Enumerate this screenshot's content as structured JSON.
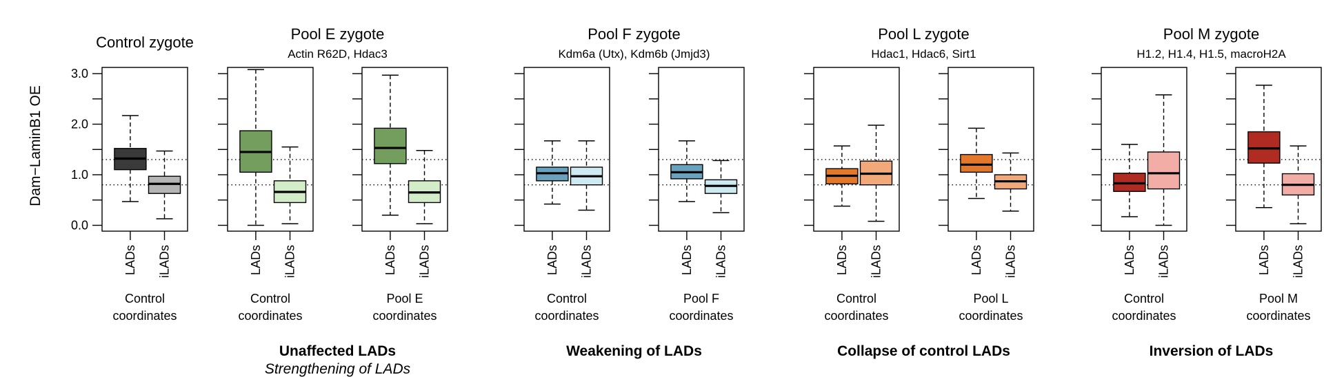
{
  "chart_data": {
    "type": "boxplot",
    "ylabel": "Dam−LaminB1 OE",
    "ylim": [
      0,
      3.2
    ],
    "yticks": [
      0,
      0.5,
      1,
      1.5,
      2,
      2.5,
      3
    ],
    "ytick_labels": [
      "0.0",
      "",
      "1.0",
      "",
      "2.0",
      "",
      "3.0"
    ],
    "reference_lines": [
      0.8,
      1.3
    ],
    "categories": [
      "LADs",
      "iLADs"
    ],
    "groups": [
      {
        "title": "Control zygote",
        "subtitle": "",
        "summary": "",
        "summary2": "",
        "panels": [
          {
            "caption": [
              "Control",
              "coordinates"
            ],
            "boxes": [
              {
                "category": "LADs",
                "color": "#3a3a3a",
                "whisker_low": 0.47,
                "q1": 1.1,
                "median": 1.32,
                "q3": 1.52,
                "whisker_high": 2.17
              },
              {
                "category": "iLADs",
                "color": "#b5b5b5",
                "whisker_low": 0.13,
                "q1": 0.63,
                "median": 0.82,
                "q3": 0.97,
                "whisker_high": 1.47
              }
            ]
          }
        ]
      },
      {
        "title": "Pool E zygote",
        "subtitle": "Actin R62D, Hdac3",
        "summary": "Unaffected LADs",
        "summary2": "Strengthening of LADs",
        "panels": [
          {
            "caption": [
              "Control",
              "coordinates"
            ],
            "boxes": [
              {
                "category": "LADs",
                "color": "#739e5e",
                "whisker_low": 0.0,
                "q1": 1.05,
                "median": 1.45,
                "q3": 1.87,
                "whisker_high": 3.08
              },
              {
                "category": "iLADs",
                "color": "#d3edc8",
                "whisker_low": 0.03,
                "q1": 0.45,
                "median": 0.66,
                "q3": 0.88,
                "whisker_high": 1.55
              }
            ]
          },
          {
            "caption": [
              "Pool E",
              "coordinates"
            ],
            "boxes": [
              {
                "category": "LADs",
                "color": "#739e5e",
                "whisker_low": 0.2,
                "q1": 1.22,
                "median": 1.53,
                "q3": 1.92,
                "whisker_high": 2.97
              },
              {
                "category": "iLADs",
                "color": "#d3edc8",
                "whisker_low": 0.03,
                "q1": 0.45,
                "median": 0.65,
                "q3": 0.88,
                "whisker_high": 1.48
              }
            ]
          }
        ]
      },
      {
        "title": "Pool F zygote",
        "subtitle": "Kdm6a (Utx), Kdm6b (Jmjd3)",
        "summary": "Weakening of LADs",
        "summary2": "",
        "panels": [
          {
            "caption": [
              "Control",
              "coordinates"
            ],
            "boxes": [
              {
                "category": "LADs",
                "color": "#6aa2bd",
                "whisker_low": 0.42,
                "q1": 0.88,
                "median": 1.03,
                "q3": 1.15,
                "whisker_high": 1.67
              },
              {
                "category": "iLADs",
                "color": "#cfe9f1",
                "whisker_low": 0.3,
                "q1": 0.8,
                "median": 0.97,
                "q3": 1.15,
                "whisker_high": 1.67
              }
            ]
          },
          {
            "caption": [
              "Pool F",
              "coordinates"
            ],
            "boxes": [
              {
                "category": "LADs",
                "color": "#6aa2bd",
                "whisker_low": 0.47,
                "q1": 0.92,
                "median": 1.05,
                "q3": 1.2,
                "whisker_high": 1.67
              },
              {
                "category": "iLADs",
                "color": "#cfe9f1",
                "whisker_low": 0.25,
                "q1": 0.63,
                "median": 0.78,
                "q3": 0.9,
                "whisker_high": 1.28
              }
            ]
          }
        ]
      },
      {
        "title": "Pool L zygote",
        "subtitle": "Hdac1, Hdac6, Sirt1",
        "summary": "Collapse of control LADs",
        "summary2": "",
        "panels": [
          {
            "caption": [
              "Control",
              "coordinates"
            ],
            "boxes": [
              {
                "category": "LADs",
                "color": "#e3782b",
                "whisker_low": 0.38,
                "q1": 0.82,
                "median": 0.98,
                "q3": 1.12,
                "whisker_high": 1.57
              },
              {
                "category": "iLADs",
                "color": "#f2a97a",
                "whisker_low": 0.08,
                "q1": 0.8,
                "median": 1.02,
                "q3": 1.27,
                "whisker_high": 1.98
              }
            ]
          },
          {
            "caption": [
              "Pool L",
              "coordinates"
            ],
            "boxes": [
              {
                "category": "LADs",
                "color": "#e3782b",
                "whisker_low": 0.53,
                "q1": 1.05,
                "median": 1.2,
                "q3": 1.4,
                "whisker_high": 1.92
              },
              {
                "category": "iLADs",
                "color": "#f2a97a",
                "whisker_low": 0.28,
                "q1": 0.72,
                "median": 0.87,
                "q3": 1.0,
                "whisker_high": 1.43
              }
            ]
          }
        ]
      },
      {
        "title": "Pool M zygote",
        "subtitle": "H1.2, H1.4, H1.5, macroH2A",
        "summary": "Inversion of LADs",
        "summary2": "",
        "panels": [
          {
            "caption": [
              "Control",
              "coordinates"
            ],
            "boxes": [
              {
                "category": "LADs",
                "color": "#b02b22",
                "whisker_low": 0.17,
                "q1": 0.67,
                "median": 0.83,
                "q3": 1.03,
                "whisker_high": 1.6
              },
              {
                "category": "iLADs",
                "color": "#f2aea6",
                "whisker_low": 0.0,
                "q1": 0.72,
                "median": 1.03,
                "q3": 1.45,
                "whisker_high": 2.58
              }
            ]
          },
          {
            "caption": [
              "Pool M",
              "coordinates"
            ],
            "boxes": [
              {
                "category": "LADs",
                "color": "#b02b22",
                "whisker_low": 0.35,
                "q1": 1.23,
                "median": 1.52,
                "q3": 1.85,
                "whisker_high": 2.77
              },
              {
                "category": "iLADs",
                "color": "#f2aea6",
                "whisker_low": 0.03,
                "q1": 0.6,
                "median": 0.8,
                "q3": 1.02,
                "whisker_high": 1.57
              }
            ]
          }
        ]
      }
    ]
  }
}
